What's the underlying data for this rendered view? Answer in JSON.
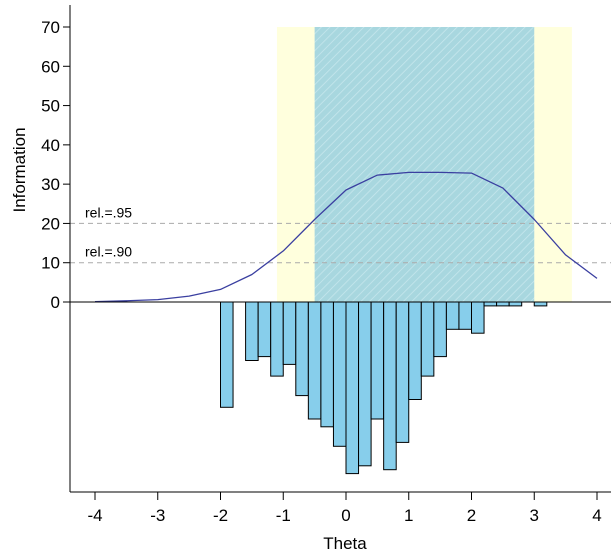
{
  "chart_data": {
    "type": "line",
    "xlabel": "Theta",
    "ylabel": "Information",
    "xlim": [
      -4.1,
      4.1
    ],
    "ylim": [
      0,
      70
    ],
    "x_ticks": [
      -4,
      -3,
      -2,
      -1,
      0,
      1,
      2,
      3,
      4
    ],
    "y_ticks": [
      0,
      10,
      20,
      30,
      40,
      50,
      60,
      70
    ],
    "grid": false,
    "reliability_lines": [
      {
        "label": "rel.=.95",
        "y": 20
      },
      {
        "label": "rel.=.90",
        "y": 10
      }
    ],
    "shaded_regions": [
      {
        "x_from": -1.1,
        "x_to": 3.6,
        "color": "#ffffdd"
      },
      {
        "x_from": -0.5,
        "x_to": 3.0,
        "color": "#a8d7df",
        "hatched": true
      }
    ],
    "information_curve": {
      "color": "#3a3fa0",
      "x": [
        -4.0,
        -3.5,
        -3.0,
        -2.5,
        -2.0,
        -1.5,
        -1.0,
        -0.5,
        0.0,
        0.5,
        1.0,
        1.5,
        2.0,
        2.5,
        3.0,
        3.5,
        4.0
      ],
      "y": [
        0.1,
        0.3,
        0.6,
        1.5,
        3.2,
        7.0,
        13.0,
        21.0,
        28.5,
        32.3,
        33.0,
        33.0,
        32.8,
        29.0,
        21.0,
        12.0,
        6.0
      ]
    },
    "person_histogram": {
      "color": "#87ceeb",
      "bin_width": 0.2,
      "bin_starts": [
        -2.0,
        -1.6,
        -1.4,
        -1.2,
        -1.0,
        -0.8,
        -0.6,
        -0.4,
        -0.2,
        0.0,
        0.2,
        0.4,
        0.6,
        0.8,
        1.0,
        1.2,
        1.4,
        1.6,
        1.8,
        2.0,
        2.2,
        2.4,
        2.6,
        3.0
      ],
      "counts": [
        27,
        15,
        14,
        19,
        16,
        24,
        30,
        32,
        37,
        44,
        42,
        30,
        43,
        36,
        25,
        19,
        14,
        7,
        7,
        8,
        1,
        1,
        1,
        1
      ]
    }
  }
}
